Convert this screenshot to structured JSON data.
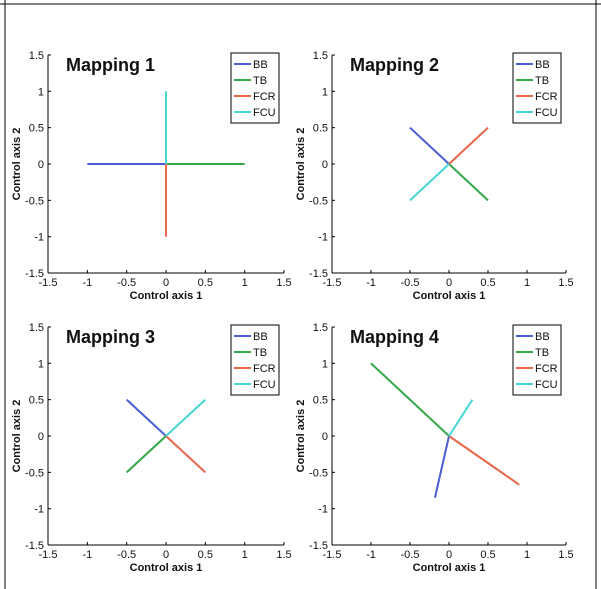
{
  "chart_data": [
    {
      "type": "line",
      "title": "Mapping 1",
      "xlabel": "Control axis 1",
      "ylabel": "Control axis 2",
      "xlim": [
        -1.5,
        1.5
      ],
      "ylim": [
        -1.5,
        1.5
      ],
      "xticks": [
        "-1.5",
        "-1",
        "-0.5",
        "0",
        "0.5",
        "1",
        "1.5"
      ],
      "yticks": [
        "1.5",
        "1",
        "0.5",
        "0",
        "-0.5",
        "-1",
        "-1.5"
      ],
      "legend_position": "top-right",
      "grid": false,
      "series": [
        {
          "name": "BB",
          "color": "#4a5fd6",
          "x": [
            0,
            -1
          ],
          "y": [
            0,
            0
          ]
        },
        {
          "name": "TB",
          "color": "#33a84a",
          "x": [
            0,
            1
          ],
          "y": [
            0,
            0
          ]
        },
        {
          "name": "FCR",
          "color": "#e8664a",
          "x": [
            0,
            0
          ],
          "y": [
            0,
            -1
          ]
        },
        {
          "name": "FCU",
          "color": "#45d6d6",
          "x": [
            0,
            0
          ],
          "y": [
            0,
            1
          ]
        }
      ]
    },
    {
      "type": "line",
      "title": "Mapping 2",
      "xlabel": "Control axis 1",
      "ylabel": "Control axis 2",
      "xlim": [
        -1.5,
        1.5
      ],
      "ylim": [
        -1.5,
        1.5
      ],
      "xticks": [
        "-1.5",
        "-1",
        "-0.5",
        "0",
        "0.5",
        "1",
        "1.5"
      ],
      "yticks": [
        "1.5",
        "1",
        "0.5",
        "0",
        "-0.5",
        "-1",
        "-1.5"
      ],
      "legend_position": "top-right",
      "grid": false,
      "series": [
        {
          "name": "BB",
          "color": "#4a5fd6",
          "x": [
            0,
            -0.5
          ],
          "y": [
            0,
            0.5
          ]
        },
        {
          "name": "TB",
          "color": "#33a84a",
          "x": [
            0,
            0.5
          ],
          "y": [
            0,
            -0.5
          ]
        },
        {
          "name": "FCR",
          "color": "#e8664a",
          "x": [
            0,
            0.5
          ],
          "y": [
            0,
            0.5
          ]
        },
        {
          "name": "FCU",
          "color": "#45d6d6",
          "x": [
            0,
            -0.5
          ],
          "y": [
            0,
            -0.5
          ]
        }
      ]
    },
    {
      "type": "line",
      "title": "Mapping 3",
      "xlabel": "Control axis 1",
      "ylabel": "Control axis 2",
      "xlim": [
        -1.5,
        1.5
      ],
      "ylim": [
        -1.5,
        1.5
      ],
      "xticks": [
        "-1.5",
        "-1",
        "-0.5",
        "0",
        "0.5",
        "1",
        "1.5"
      ],
      "yticks": [
        "1.5",
        "1",
        "0.5",
        "0",
        "-0.5",
        "-1",
        "-1.5"
      ],
      "legend_position": "top-right",
      "grid": false,
      "series": [
        {
          "name": "BB",
          "color": "#4a5fd6",
          "x": [
            0,
            -0.5
          ],
          "y": [
            0,
            0.5
          ]
        },
        {
          "name": "TB",
          "color": "#33a84a",
          "x": [
            0,
            -0.5
          ],
          "y": [
            0,
            -0.5
          ]
        },
        {
          "name": "FCR",
          "color": "#e8664a",
          "x": [
            0,
            0.5
          ],
          "y": [
            0,
            -0.5
          ]
        },
        {
          "name": "FCU",
          "color": "#45d6d6",
          "x": [
            0,
            0.5
          ],
          "y": [
            0,
            0.5
          ]
        }
      ]
    },
    {
      "type": "line",
      "title": "Mapping 4",
      "xlabel": "Control axis 1",
      "ylabel": "Control axis 2",
      "xlim": [
        -1.5,
        1.5
      ],
      "ylim": [
        -1.5,
        1.5
      ],
      "xticks": [
        "-1.5",
        "-1",
        "-0.5",
        "0",
        "0.5",
        "1",
        "1.5"
      ],
      "yticks": [
        "1.5",
        "1",
        "0.5",
        "0",
        "-0.5",
        "-1",
        "-1.5"
      ],
      "legend_position": "top-right",
      "grid": false,
      "series": [
        {
          "name": "BB",
          "color": "#4a5fd6",
          "x": [
            0,
            -0.18
          ],
          "y": [
            0,
            -0.85
          ]
        },
        {
          "name": "TB",
          "color": "#33a84a",
          "x": [
            0,
            -1.0
          ],
          "y": [
            0,
            1.0
          ]
        },
        {
          "name": "FCR",
          "color": "#e8664a",
          "x": [
            0,
            0.9
          ],
          "y": [
            0,
            -0.67
          ]
        },
        {
          "name": "FCU",
          "color": "#45d6d6",
          "x": [
            0,
            0.3
          ],
          "y": [
            0,
            0.5
          ]
        }
      ]
    }
  ]
}
